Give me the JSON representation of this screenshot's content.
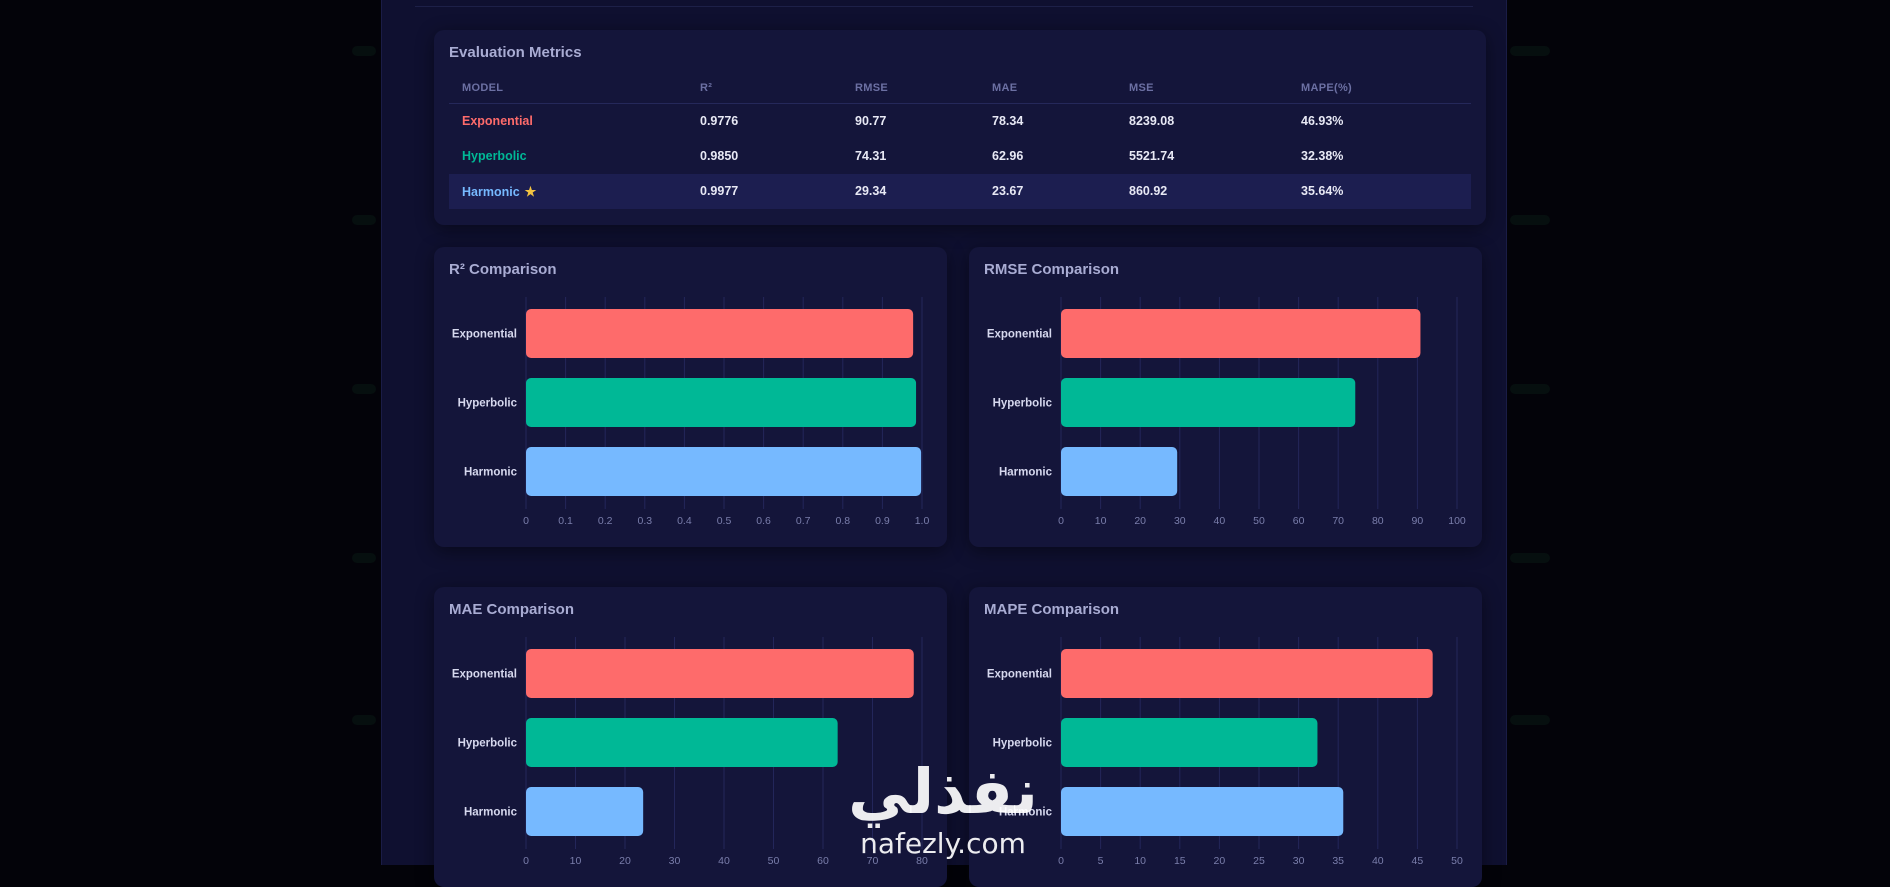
{
  "colors": {
    "exponential": "#fe6b6b",
    "hyperbolic": "#00b896",
    "harmonic": "#76b9ff",
    "best_row_bg": "#1c1e50",
    "star": "#f3c441"
  },
  "metrics": {
    "title": "Evaluation Metrics",
    "headers": [
      "MODEL",
      "R²",
      "RMSE",
      "MAE",
      "MSE",
      "MAPE(%)"
    ],
    "rows": [
      {
        "model": "Exponential",
        "r2": "0.9776",
        "rmse": "90.77",
        "mae": "78.34",
        "mse": "8239.08",
        "mape": "46.93%",
        "best": false
      },
      {
        "model": "Hyperbolic",
        "r2": "0.9850",
        "rmse": "74.31",
        "mae": "62.96",
        "mse": "5521.74",
        "mape": "32.38%",
        "best": false
      },
      {
        "model": "Harmonic",
        "r2": "0.9977",
        "rmse": "29.34",
        "mae": "23.67",
        "mse": "860.92",
        "mape": "35.64%",
        "best": true,
        "best_icon": "star-icon",
        "best_glyph": "★"
      }
    ]
  },
  "chart_data": [
    {
      "type": "bar",
      "orientation": "horizontal",
      "title": "R² Comparison",
      "categories": [
        "Exponential",
        "Hyperbolic",
        "Harmonic"
      ],
      "values": [
        0.9776,
        0.985,
        0.9977
      ],
      "xlim": [
        0,
        1.0
      ],
      "ticks": [
        "0",
        "0.1",
        "0.2",
        "0.3",
        "0.4",
        "0.5",
        "0.6",
        "0.7",
        "0.8",
        "0.9",
        "1.0"
      ],
      "colors": [
        "#fe6b6b",
        "#00b896",
        "#76b9ff"
      ],
      "grid": true
    },
    {
      "type": "bar",
      "orientation": "horizontal",
      "title": "RMSE Comparison",
      "categories": [
        "Exponential",
        "Hyperbolic",
        "Harmonic"
      ],
      "values": [
        90.77,
        74.31,
        29.34
      ],
      "xlim": [
        0,
        100
      ],
      "ticks": [
        "0",
        "10",
        "20",
        "30",
        "40",
        "50",
        "60",
        "70",
        "80",
        "90",
        "100"
      ],
      "colors": [
        "#fe6b6b",
        "#00b896",
        "#76b9ff"
      ],
      "grid": true
    },
    {
      "type": "bar",
      "orientation": "horizontal",
      "title": "MAE Comparison",
      "categories": [
        "Exponential",
        "Hyperbolic",
        "Harmonic"
      ],
      "values": [
        78.34,
        62.96,
        23.67
      ],
      "xlim": [
        0,
        80
      ],
      "ticks": [
        "0",
        "10",
        "20",
        "30",
        "40",
        "50",
        "60",
        "70",
        "80"
      ],
      "colors": [
        "#fe6b6b",
        "#00b896",
        "#76b9ff"
      ],
      "grid": true
    },
    {
      "type": "bar",
      "orientation": "horizontal",
      "title": "MAPE Comparison",
      "categories": [
        "Exponential",
        "Hyperbolic",
        "Harmonic"
      ],
      "values": [
        46.93,
        32.38,
        35.64
      ],
      "xlim": [
        0,
        50
      ],
      "ticks": [
        "0",
        "5",
        "10",
        "15",
        "20",
        "25",
        "30",
        "35",
        "40",
        "45",
        "50"
      ],
      "colors": [
        "#fe6b6b",
        "#00b896",
        "#76b9ff"
      ],
      "grid": true
    }
  ],
  "watermark": {
    "arabic": "نفذلي",
    "latin": "nafezly.com"
  }
}
